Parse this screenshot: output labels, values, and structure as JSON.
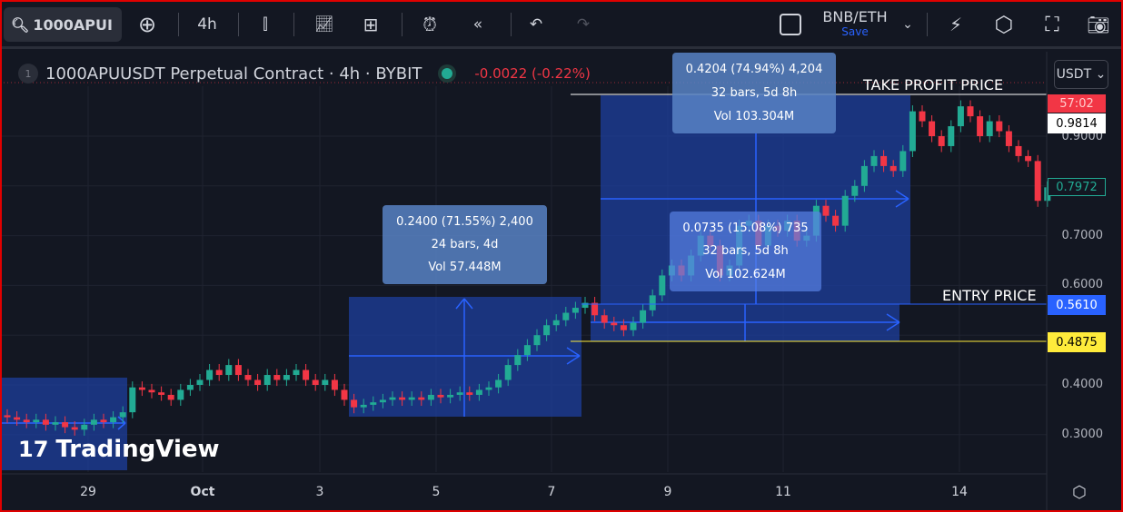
{
  "toolbar": {
    "symbol": "1000APUI",
    "interval": "4h",
    "layout_name": "BNB/ETH",
    "save_label": "Save",
    "icons": [
      "search-icon",
      "plus-circle-icon",
      "candles-icon",
      "indicators-icon",
      "layouts-icon",
      "alert-icon",
      "replay-icon",
      "undo-icon",
      "redo-icon",
      "square-icon",
      "chevron-down-icon",
      "quick-search-icon",
      "settings-icon",
      "fullscreen-icon",
      "camera-icon"
    ]
  },
  "legend": {
    "index": "1",
    "title": "1000APUUSDT Perpetual Contract · 4h · BYBIT",
    "change": "-0.0022 (-0.22%)"
  },
  "currency": "USDT ⌄",
  "measures": [
    {
      "line1": "0.2400 (71.55%) 2,400",
      "line2": "24 bars, 4d",
      "line3": "Vol 57.448M"
    },
    {
      "line1": "0.4204 (74.94%) 4,204",
      "line2": "32 bars, 5d 8h",
      "line3": "Vol 103.304M"
    },
    {
      "line1": "0.0735 (15.08%) 735",
      "line2": "32 bars, 5d 8h",
      "line3": "Vol 102.624M"
    }
  ],
  "annotations": {
    "take_profit": "TAKE PROFIT PRICE",
    "entry": "ENTRY PRICE"
  },
  "price_labels": {
    "countdown": "57:02",
    "take_profit": "0.9814",
    "last": "0.7972",
    "entry": "0.5610",
    "stop": "0.4875"
  },
  "colors": {
    "up": "#22ab94",
    "down": "#f23645",
    "entry": "#2962ff",
    "stop": "#ffeb3b",
    "box": "#1e3f9e"
  },
  "watermark": "TradingView",
  "chart_data": {
    "type": "candlestick",
    "yticks": [
      "0.9000",
      "0.7000",
      "0.6000",
      "0.4000",
      "0.3000"
    ],
    "xticks": [
      "29",
      "Oct",
      "3",
      "5",
      "7",
      "9",
      "11",
      "14"
    ],
    "close": [
      0.335,
      0.33,
      0.325,
      0.33,
      0.32,
      0.325,
      0.315,
      0.31,
      0.32,
      0.33,
      0.325,
      0.335,
      0.345,
      0.395,
      0.39,
      0.385,
      0.38,
      0.37,
      0.39,
      0.4,
      0.41,
      0.43,
      0.42,
      0.44,
      0.42,
      0.41,
      0.4,
      0.42,
      0.41,
      0.42,
      0.43,
      0.41,
      0.4,
      0.41,
      0.39,
      0.37,
      0.355,
      0.36,
      0.365,
      0.37,
      0.375,
      0.37,
      0.375,
      0.37,
      0.38,
      0.375,
      0.38,
      0.385,
      0.38,
      0.39,
      0.395,
      0.41,
      0.44,
      0.46,
      0.48,
      0.5,
      0.52,
      0.53,
      0.545,
      0.555,
      0.565,
      0.54,
      0.525,
      0.52,
      0.51,
      0.525,
      0.55,
      0.58,
      0.62,
      0.64,
      0.62,
      0.66,
      0.7,
      0.68,
      0.62,
      0.64,
      0.72,
      0.73,
      0.68,
      0.72,
      0.71,
      0.73,
      0.69,
      0.7,
      0.76,
      0.74,
      0.72,
      0.78,
      0.8,
      0.84,
      0.86,
      0.84,
      0.83,
      0.87,
      0.95,
      0.93,
      0.9,
      0.88,
      0.92,
      0.96,
      0.94,
      0.9,
      0.93,
      0.91,
      0.88,
      0.86,
      0.85,
      0.77,
      0.7972
    ]
  }
}
